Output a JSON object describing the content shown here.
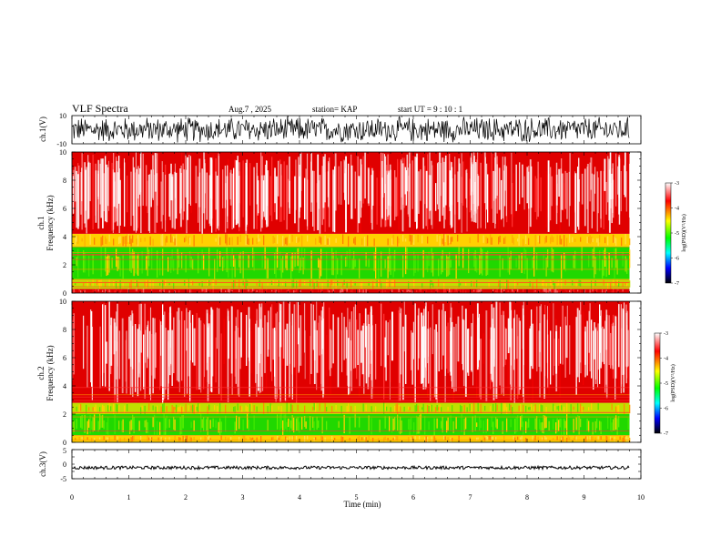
{
  "header": {
    "title": "VLF Spectra",
    "date": "Aug.7 , 2025",
    "station": "station= KAP",
    "start": "start UT = 9 : 10 : 1"
  },
  "colors": {
    "background": "#ffffff",
    "spectrogram_high": "#e00000",
    "spectrogram_mid": "#ffd000",
    "spectrogram_low": "#30e000",
    "waveform": "#000000"
  },
  "colorbar": {
    "label": "log(PSD)(V²/Hz)",
    "ticks": [
      "-3",
      "-4",
      "-5",
      "-6",
      "-7"
    ],
    "stops": [
      "#ffffff",
      "#ff0000",
      "#ffff00",
      "#00ff00",
      "#00ffff",
      "#0000ff",
      "#000000"
    ]
  },
  "chart_data": [
    {
      "type": "line",
      "name": "ch.1 waveform",
      "ylabel": "ch.1(V)",
      "ylim": [
        -10,
        10
      ],
      "yticks": [
        "10",
        "-10"
      ],
      "x_range_min": [
        0,
        9.8
      ],
      "description_level": "dense noise between about -8 and 8 V"
    },
    {
      "type": "heatmap",
      "name": "ch.1 spectrogram",
      "ylabel": "ch.1",
      "ylabel2": "Frequency (kHz)",
      "ylim": [
        0,
        10
      ],
      "yticks": [
        "0",
        "2",
        "4",
        "6",
        "8",
        "10"
      ],
      "x_range_min": [
        0,
        9.8
      ],
      "bands_khz": [
        {
          "from": 0.0,
          "to": 0.3,
          "level": "red"
        },
        {
          "from": 0.3,
          "to": 1.0,
          "level": "yellow-green"
        },
        {
          "from": 1.0,
          "to": 3.3,
          "level": "green"
        },
        {
          "from": 3.3,
          "to": 4.2,
          "level": "yellow"
        },
        {
          "from": 4.2,
          "to": 10.0,
          "level": "red-white"
        }
      ]
    },
    {
      "type": "heatmap",
      "name": "ch.2 spectrogram",
      "ylabel": "ch.2",
      "ylabel2": "Frequency (kHz)",
      "ylim": [
        0,
        10
      ],
      "yticks": [
        "0",
        "2",
        "4",
        "6",
        "8",
        "10"
      ],
      "x_range_min": [
        0,
        9.8
      ],
      "bands_khz": [
        {
          "from": 0.0,
          "to": 0.5,
          "level": "yellow"
        },
        {
          "from": 0.5,
          "to": 2.0,
          "level": "green"
        },
        {
          "from": 2.0,
          "to": 2.8,
          "level": "yellow-green"
        },
        {
          "from": 2.8,
          "to": 10.0,
          "level": "red-white"
        }
      ]
    },
    {
      "type": "line",
      "name": "ch.3 waveform",
      "ylabel": "ch.3(V)",
      "ylim": [
        -5,
        5
      ],
      "yticks": [
        "5",
        "0",
        "-5"
      ],
      "x_range_min": [
        0,
        9.8
      ],
      "description_level": "near constant around -1.2 V"
    }
  ],
  "xaxis": {
    "label": "Time (min)",
    "range": [
      0,
      10
    ],
    "ticks": [
      "0",
      "1",
      "2",
      "3",
      "4",
      "5",
      "6",
      "7",
      "8",
      "9",
      "10"
    ]
  }
}
